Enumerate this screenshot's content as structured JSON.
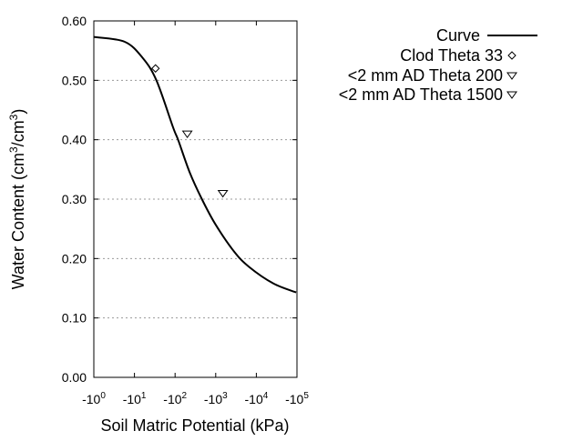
{
  "chart_data": {
    "type": "scatter",
    "xlabel": "Soil Matric Potential (kPa)",
    "ylabel_main": "Water Content (cm",
    "ylabel_sup1": "3",
    "ylabel_mid": "/cm",
    "ylabel_sup2": "3",
    "ylabel_end": ")",
    "x_scale": "log",
    "xlim": [
      1,
      100000
    ],
    "ylim": [
      0,
      0.6
    ],
    "x_ticks": [
      {
        "base": "-10",
        "exp": "0"
      },
      {
        "base": "-10",
        "exp": "1"
      },
      {
        "base": "-10",
        "exp": "2"
      },
      {
        "base": "-10",
        "exp": "3"
      },
      {
        "base": "-10",
        "exp": "4"
      },
      {
        "base": "-10",
        "exp": "5"
      }
    ],
    "y_ticks": [
      "0.00",
      "0.10",
      "0.20",
      "0.30",
      "0.40",
      "0.50",
      "0.60"
    ],
    "grid": "horizontal dotted",
    "legend_placement": "top-right outside",
    "series": [
      {
        "name": "Curve",
        "type": "line",
        "color": "#000000",
        "x": [
          1,
          5.7,
          15.8,
          34.7,
          89,
          120,
          229,
          457,
          977,
          2818,
          6607,
          26303,
          95500
        ],
        "y": [
          0.573,
          0.565,
          0.538,
          0.5,
          0.421,
          0.399,
          0.345,
          0.3,
          0.258,
          0.212,
          0.186,
          0.158,
          0.143
        ]
      },
      {
        "name": "Clod Theta 33",
        "type": "scatter",
        "marker": "diamond",
        "x": [
          33
        ],
        "y": [
          0.52
        ]
      },
      {
        "name": "<2 mm AD Theta 200",
        "type": "scatter",
        "marker": "triangle-down",
        "x": [
          200
        ],
        "y": [
          0.41
        ]
      },
      {
        "name": "<2 mm AD Theta 1500",
        "type": "scatter",
        "marker": "triangle-down",
        "x": [
          1500
        ],
        "y": [
          0.31
        ]
      }
    ]
  }
}
